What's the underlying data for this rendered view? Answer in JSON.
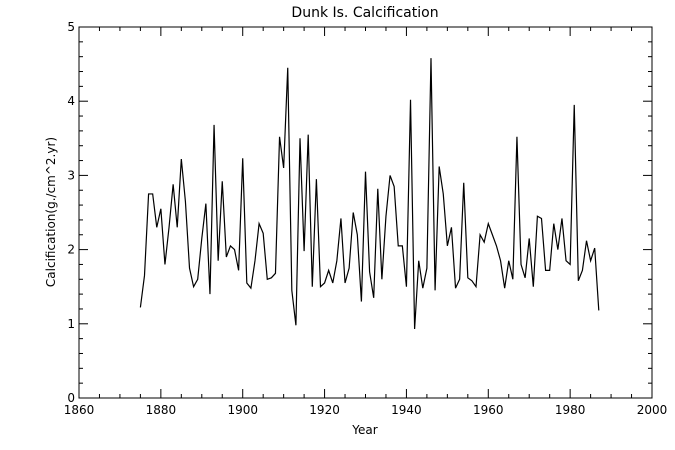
{
  "chart_data": {
    "type": "line",
    "title": "Dunk Is. Calcification",
    "xlabel": "Year",
    "ylabel": "Calcification(g./cm^2.yr)",
    "xlim": [
      1860,
      2000
    ],
    "ylim": [
      0,
      5
    ],
    "xticks": [
      1860,
      1880,
      1900,
      1920,
      1940,
      1960,
      1980,
      2000
    ],
    "yticks": [
      0,
      1,
      2,
      3,
      4,
      5
    ],
    "grid": false,
    "legend": "none",
    "line_color": "#000000",
    "series": [
      {
        "x": [
          1875,
          1876,
          1877,
          1878,
          1879,
          1880,
          1881,
          1882,
          1883,
          1884,
          1885,
          1886,
          1887,
          1888,
          1889,
          1890,
          1891,
          1892,
          1893,
          1894,
          1895,
          1896,
          1897,
          1898,
          1899,
          1900,
          1901,
          1902,
          1903,
          1904,
          1905,
          1906,
          1907,
          1908,
          1909,
          1910,
          1911,
          1912,
          1913,
          1914,
          1915,
          1916,
          1917,
          1918,
          1919,
          1920,
          1921,
          1922,
          1923,
          1924,
          1925,
          1926,
          1927,
          1928,
          1929,
          1930,
          1931,
          1932,
          1933,
          1934,
          1935,
          1936,
          1937,
          1938,
          1939,
          1940,
          1941,
          1942,
          1943,
          1944,
          1945,
          1946,
          1947,
          1948,
          1949,
          1950,
          1951,
          1952,
          1953,
          1954,
          1955,
          1956,
          1957,
          1958,
          1959,
          1960,
          1961,
          1962,
          1963,
          1964,
          1965,
          1966,
          1967,
          1968,
          1969,
          1970,
          1971,
          1972,
          1973,
          1974,
          1975,
          1976,
          1977,
          1978,
          1979,
          1980,
          1981,
          1982,
          1983,
          1984,
          1985,
          1986,
          1987
        ],
        "values": [
          1.22,
          1.65,
          2.75,
          2.75,
          2.3,
          2.55,
          1.8,
          2.3,
          2.88,
          2.3,
          3.22,
          2.65,
          1.75,
          1.5,
          1.6,
          2.15,
          2.62,
          1.4,
          3.68,
          1.85,
          2.92,
          1.9,
          2.05,
          2.0,
          1.72,
          3.23,
          1.55,
          1.48,
          1.85,
          2.35,
          2.22,
          1.6,
          1.62,
          1.68,
          3.52,
          3.1,
          4.45,
          1.45,
          0.98,
          3.5,
          1.98,
          3.55,
          1.5,
          2.95,
          1.5,
          1.55,
          1.72,
          1.55,
          1.85,
          2.42,
          1.55,
          1.75,
          2.5,
          2.2,
          1.3,
          3.05,
          1.7,
          1.35,
          2.82,
          1.6,
          2.45,
          3.0,
          2.85,
          2.05,
          2.05,
          1.5,
          4.02,
          0.93,
          1.85,
          1.48,
          1.75,
          4.58,
          1.45,
          3.12,
          2.75,
          2.05,
          2.3,
          1.48,
          1.6,
          2.9,
          1.62,
          1.58,
          1.5,
          2.2,
          2.1,
          2.35,
          2.2,
          2.05,
          1.85,
          1.48,
          1.85,
          1.6,
          3.52,
          1.8,
          1.62,
          2.15,
          1.5,
          2.45,
          2.42,
          1.72,
          1.72,
          2.35,
          2.0,
          2.42,
          1.85,
          1.8,
          3.95,
          1.58,
          1.72,
          2.12,
          1.85,
          2.02,
          1.18
        ]
      }
    ]
  }
}
